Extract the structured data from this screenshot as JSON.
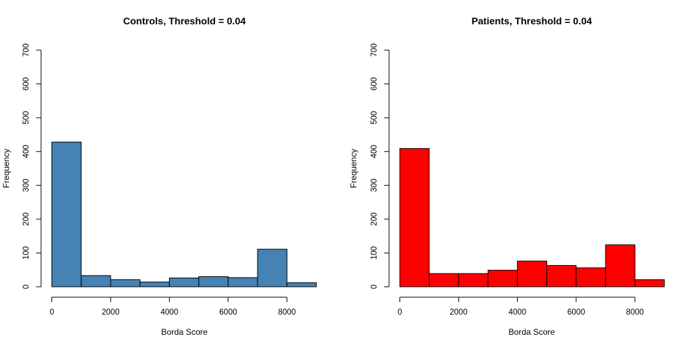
{
  "chart_data": [
    {
      "type": "bar",
      "title": "Controls, Threshold =  0.04",
      "xlabel": "Borda Score",
      "ylabel": "Frequency",
      "bin_edges": [
        0,
        1000,
        2000,
        3000,
        4000,
        5000,
        6000,
        7000,
        8000,
        9000
      ],
      "values": [
        428,
        33,
        21,
        14,
        26,
        30,
        27,
        111,
        12
      ],
      "xticks": [
        0,
        2000,
        4000,
        6000,
        8000
      ],
      "yticks": [
        0,
        100,
        200,
        300,
        400,
        500,
        600,
        700
      ],
      "xlim": [
        0,
        9000
      ],
      "ylim": [
        0,
        700
      ],
      "color": "#4682B4"
    },
    {
      "type": "bar",
      "title": "Patients, Threshold = 0.04",
      "xlabel": "Borda Score",
      "ylabel": "Frequency",
      "bin_edges": [
        0,
        1000,
        2000,
        3000,
        4000,
        5000,
        6000,
        7000,
        8000,
        9000
      ],
      "values": [
        409,
        39,
        39,
        49,
        76,
        63,
        56,
        124,
        21
      ],
      "xticks": [
        0,
        2000,
        4000,
        6000,
        8000
      ],
      "yticks": [
        0,
        100,
        200,
        300,
        400,
        500,
        600,
        700
      ],
      "xlim": [
        0,
        9000
      ],
      "ylim": [
        0,
        700
      ],
      "color": "#FF0000"
    }
  ]
}
